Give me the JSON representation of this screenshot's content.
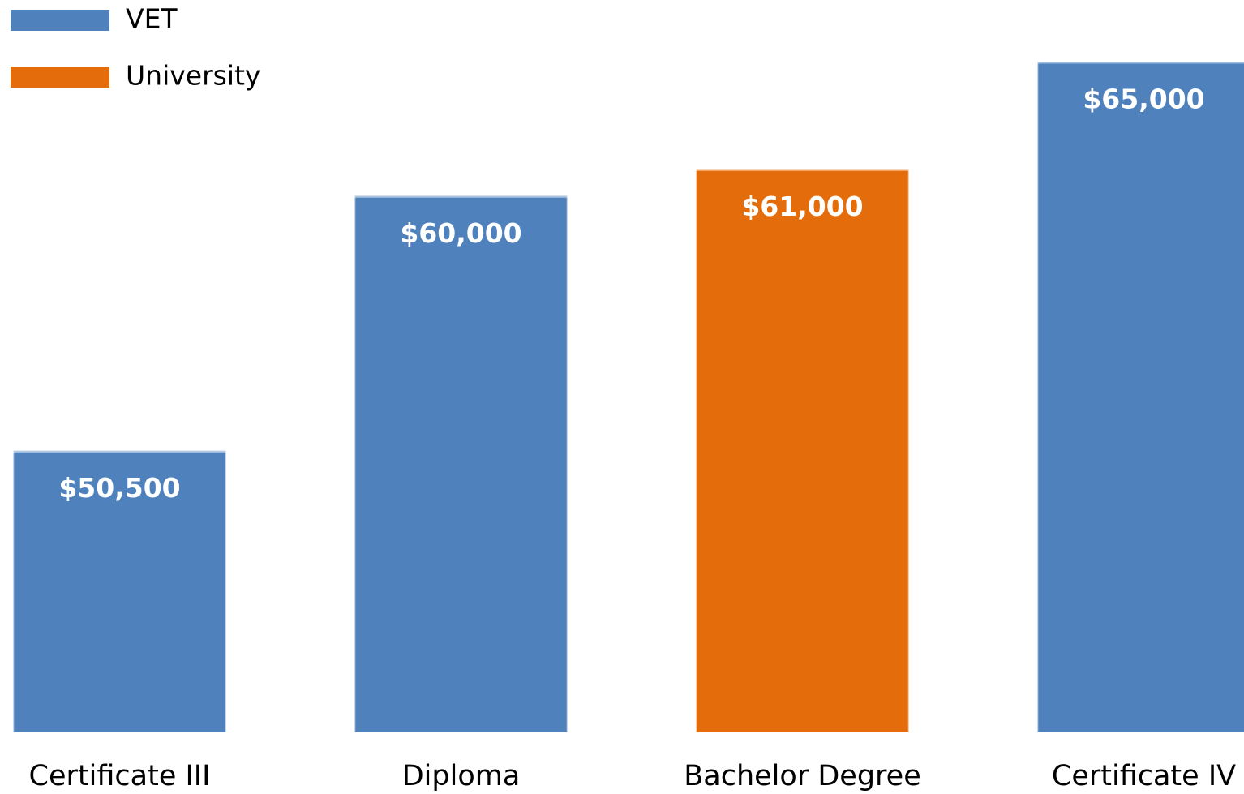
{
  "chart_data": {
    "type": "bar",
    "categories": [
      "Certificate III",
      "Diploma",
      "Bachelor Degree",
      "Certificate IV"
    ],
    "series": [
      {
        "name": "VET",
        "color": "#4f81bd",
        "values": [
          50500,
          60000,
          null,
          65000
        ],
        "value_labels": [
          "$50,500",
          "$60,000",
          null,
          "$65,000"
        ]
      },
      {
        "name": "University",
        "color": "#e46c0a",
        "values": [
          null,
          null,
          61000,
          null
        ],
        "value_labels": [
          null,
          null,
          "$61,000",
          null
        ]
      }
    ],
    "ylim": [
      40000,
      65000
    ],
    "legend": "top-left"
  }
}
